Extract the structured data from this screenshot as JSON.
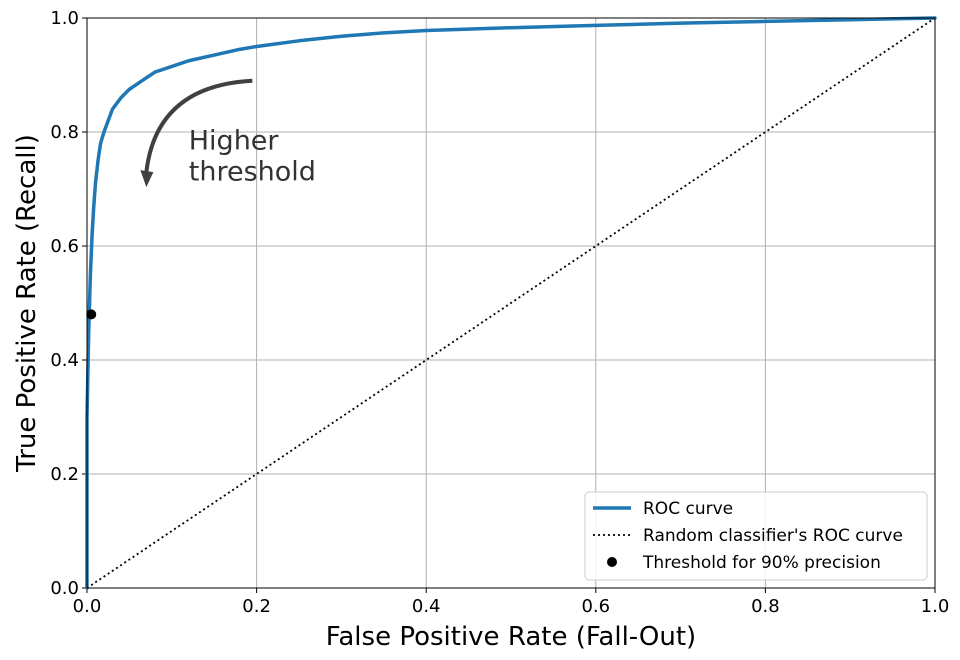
{
  "chart_data": {
    "type": "line",
    "title": "",
    "xlabel": "False Positive Rate (Fall-Out)",
    "ylabel": "True Positive Rate (Recall)",
    "xlim": [
      0.0,
      1.0
    ],
    "ylim": [
      0.0,
      1.0
    ],
    "xticks": [
      "0.0",
      "0.2",
      "0.4",
      "0.6",
      "0.8",
      "1.0"
    ],
    "yticks": [
      "0.0",
      "0.2",
      "0.4",
      "0.6",
      "0.8",
      "1.0"
    ],
    "grid": true,
    "legend_position": "bottom-right",
    "colors": {
      "roc": "#1f77b4",
      "random": "#000000",
      "threshold": "#000000",
      "grid": "#b0b0b0",
      "annotation": "#404040"
    },
    "series": [
      {
        "name": "ROC curve",
        "style": "solid",
        "x": [
          0.0,
          0.0,
          0.002,
          0.004,
          0.006,
          0.008,
          0.01,
          0.013,
          0.016,
          0.02,
          0.025,
          0.03,
          0.04,
          0.05,
          0.06,
          0.07,
          0.08,
          0.1,
          0.12,
          0.15,
          0.18,
          0.2,
          0.25,
          0.3,
          0.35,
          0.4,
          0.5,
          0.6,
          0.7,
          0.8,
          0.9,
          1.0
        ],
        "y": [
          0.0,
          0.3,
          0.45,
          0.55,
          0.62,
          0.67,
          0.71,
          0.75,
          0.78,
          0.8,
          0.82,
          0.84,
          0.86,
          0.875,
          0.885,
          0.895,
          0.905,
          0.915,
          0.925,
          0.935,
          0.945,
          0.95,
          0.96,
          0.968,
          0.974,
          0.978,
          0.983,
          0.987,
          0.991,
          0.994,
          0.997,
          1.0
        ]
      },
      {
        "name": "Random classifier's ROC curve",
        "style": "dotted",
        "x": [
          0.0,
          1.0
        ],
        "y": [
          0.0,
          1.0
        ]
      },
      {
        "name": "Threshold for 90% precision",
        "style": "marker",
        "x": [
          0.005
        ],
        "y": [
          0.48
        ]
      }
    ],
    "annotations": [
      {
        "text_lines": [
          "Higher",
          "threshold"
        ],
        "text_x": 0.12,
        "text_y": 0.78,
        "arrow_from": [
          0.195,
          0.89
        ],
        "arrow_to": [
          0.07,
          0.705
        ]
      }
    ]
  }
}
